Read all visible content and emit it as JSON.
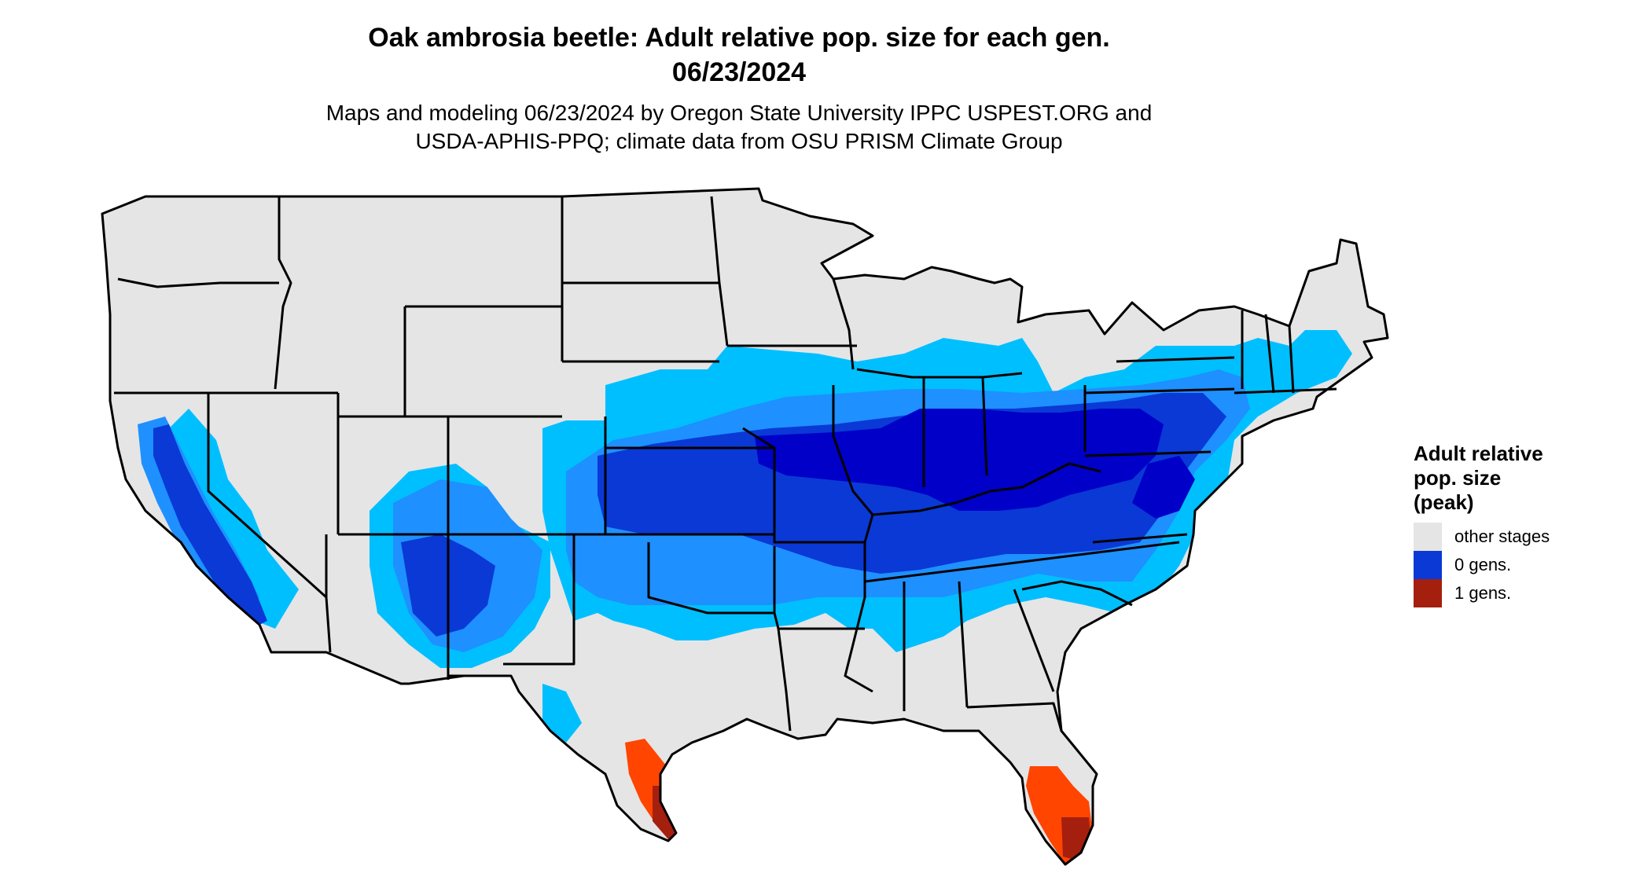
{
  "header": {
    "title_line1": "Oak ambrosia beetle: Adult relative pop. size for each gen.",
    "title_line2": "06/23/2024",
    "subtitle_line1": "Maps and modeling 06/23/2024 by Oregon State University IPPC USPEST.ORG and",
    "subtitle_line2": "USDA-APHIS-PPQ; climate data from OSU PRISM Climate Group"
  },
  "legend": {
    "title_line1": "Adult relative",
    "title_line2": "pop. size",
    "title_line3": "(peak)",
    "items": [
      {
        "label": "other stages",
        "color": "#e5e5e5"
      },
      {
        "label": "0 gens.",
        "color": "#0a39d6"
      },
      {
        "label": "1 gens.",
        "color": "#a51f0e"
      }
    ]
  },
  "map_colors": {
    "other_stages": "#e5e5e5",
    "light_blue": "#00bfff",
    "medium_blue": "#1e90ff",
    "blue": "#0a39d6",
    "dark_blue": "#0000c8",
    "orange": "#ff4500",
    "dark_red": "#a51f0e",
    "border": "#000000"
  }
}
